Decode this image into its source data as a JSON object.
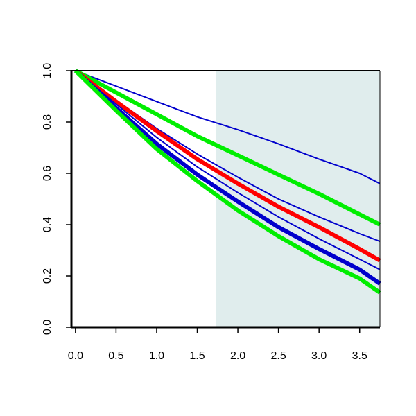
{
  "chart_data": {
    "type": "line",
    "xlim": [
      -0.05,
      3.75
    ],
    "ylim": [
      0,
      1
    ],
    "x_ticks": [
      "0.0",
      "0.5",
      "1.0",
      "1.5",
      "2.0",
      "2.5",
      "3.0",
      "3.5"
    ],
    "y_ticks": [
      "0.0",
      "0.2",
      "0.4",
      "0.6",
      "0.8",
      "1.0"
    ],
    "grid": false,
    "legend": "none",
    "shaded_region": {
      "x_start": 1.73,
      "x_end": 3.75,
      "color": "#e0eded"
    },
    "series": [
      {
        "color": "#0000cc",
        "weight": "thin",
        "x": [
          0,
          0.5,
          1.0,
          1.5,
          2.0,
          2.5,
          3.0,
          3.5,
          3.75
        ],
        "y": [
          1.0,
          0.94,
          0.88,
          0.82,
          0.77,
          0.715,
          0.655,
          0.6,
          0.56
        ]
      },
      {
        "color": "#00ee00",
        "weight": "thick",
        "x": [
          0,
          0.5,
          1.0,
          1.5,
          1.9,
          2.5,
          3.0,
          3.5,
          3.75
        ],
        "y": [
          1.0,
          0.915,
          0.83,
          0.745,
          0.685,
          0.595,
          0.52,
          0.44,
          0.4
        ]
      },
      {
        "color": "#0000cc",
        "weight": "thin",
        "x": [
          0,
          0.5,
          1.0,
          1.5,
          2.0,
          2.5,
          3.0,
          3.5,
          3.75
        ],
        "y": [
          1.0,
          0.885,
          0.775,
          0.675,
          0.585,
          0.5,
          0.43,
          0.365,
          0.335
        ]
      },
      {
        "color": "#ff0000",
        "weight": "thick",
        "x": [
          0,
          0.5,
          1.0,
          1.5,
          2.0,
          2.5,
          3.0,
          3.5,
          3.75
        ],
        "y": [
          1.0,
          0.88,
          0.765,
          0.655,
          0.56,
          0.47,
          0.39,
          0.305,
          0.26
        ]
      },
      {
        "color": "#0000cc",
        "weight": "thin",
        "x": [
          0,
          0.5,
          1.0,
          1.5,
          2.0,
          2.5,
          3.0,
          3.5,
          3.75
        ],
        "y": [
          1.0,
          0.87,
          0.74,
          0.625,
          0.525,
          0.43,
          0.345,
          0.265,
          0.225
        ]
      },
      {
        "color": "#0000cc",
        "weight": "thick",
        "x": [
          0,
          0.5,
          1.0,
          1.5,
          2.0,
          2.5,
          3.0,
          3.5,
          3.75
        ],
        "y": [
          1.0,
          0.855,
          0.715,
          0.595,
          0.49,
          0.39,
          0.305,
          0.225,
          0.17
        ]
      },
      {
        "color": "#00ee00",
        "weight": "thick",
        "x": [
          0,
          0.5,
          1.0,
          1.5,
          2.0,
          2.5,
          3.0,
          3.5,
          3.75
        ],
        "y": [
          1.0,
          0.845,
          0.695,
          0.57,
          0.455,
          0.355,
          0.265,
          0.19,
          0.135
        ]
      }
    ]
  }
}
